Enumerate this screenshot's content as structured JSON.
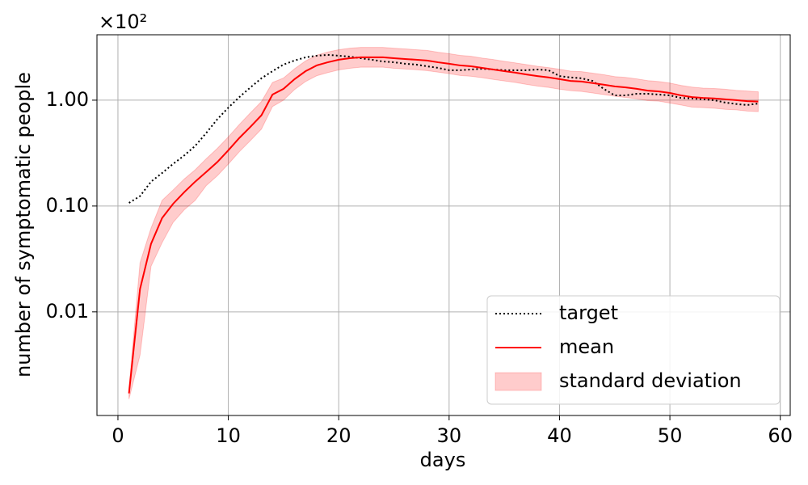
{
  "chart_data": {
    "type": "line",
    "y_multiplier": "×10²",
    "xlabel": "days",
    "ylabel": "number of symptomatic people",
    "x": [
      1,
      2,
      3,
      4,
      5,
      6,
      7,
      8,
      9,
      10,
      11,
      12,
      13,
      14,
      15,
      16,
      17,
      18,
      19,
      20,
      21,
      22,
      23,
      24,
      25,
      26,
      27,
      28,
      29,
      30,
      31,
      32,
      33,
      34,
      35,
      36,
      37,
      38,
      39,
      40,
      41,
      42,
      43,
      44,
      45,
      46,
      47,
      48,
      49,
      50,
      51,
      52,
      53,
      54,
      55,
      56,
      57,
      58
    ],
    "series": [
      {
        "name": "target",
        "color": "#000000",
        "style": "dotted",
        "values": [
          0.107,
          0.124,
          0.17,
          0.205,
          0.25,
          0.3,
          0.37,
          0.49,
          0.66,
          0.85,
          1.07,
          1.32,
          1.61,
          1.88,
          2.17,
          2.37,
          2.54,
          2.63,
          2.68,
          2.63,
          2.58,
          2.49,
          2.41,
          2.32,
          2.28,
          2.21,
          2.17,
          2.09,
          2.02,
          1.92,
          1.92,
          1.95,
          1.98,
          1.95,
          1.92,
          1.92,
          1.92,
          1.95,
          1.92,
          1.69,
          1.64,
          1.61,
          1.52,
          1.28,
          1.11,
          1.11,
          1.15,
          1.15,
          1.13,
          1.11,
          1.05,
          1.04,
          1.02,
          1.0,
          0.95,
          0.92,
          0.9,
          0.93
        ]
      },
      {
        "name": "mean",
        "color": "#ff0000",
        "style": "solid",
        "values": [
          0.0017,
          0.0164,
          0.044,
          0.077,
          0.105,
          0.135,
          0.17,
          0.21,
          0.26,
          0.336,
          0.44,
          0.56,
          0.72,
          1.13,
          1.28,
          1.58,
          1.88,
          2.13,
          2.28,
          2.41,
          2.49,
          2.54,
          2.54,
          2.54,
          2.49,
          2.45,
          2.41,
          2.37,
          2.28,
          2.21,
          2.13,
          2.09,
          2.02,
          1.95,
          1.88,
          1.82,
          1.75,
          1.69,
          1.64,
          1.58,
          1.52,
          1.5,
          1.45,
          1.4,
          1.35,
          1.32,
          1.28,
          1.23,
          1.21,
          1.17,
          1.11,
          1.07,
          1.05,
          1.04,
          1.02,
          1.0,
          0.98,
          0.97
        ]
      },
      {
        "name": "standard deviation",
        "color": "#ff0000",
        "style": "band",
        "upper": [
          0.0019,
          0.029,
          0.062,
          0.113,
          0.142,
          0.18,
          0.22,
          0.28,
          0.35,
          0.45,
          0.59,
          0.76,
          0.97,
          1.47,
          1.62,
          1.98,
          2.35,
          2.66,
          2.85,
          3.0,
          3.1,
          3.15,
          3.15,
          3.15,
          3.1,
          3.05,
          3.0,
          2.95,
          2.84,
          2.75,
          2.65,
          2.6,
          2.5,
          2.42,
          2.33,
          2.25,
          2.17,
          2.09,
          2.03,
          1.96,
          1.88,
          1.86,
          1.8,
          1.74,
          1.67,
          1.64,
          1.59,
          1.53,
          1.5,
          1.45,
          1.38,
          1.33,
          1.3,
          1.29,
          1.27,
          1.24,
          1.22,
          1.2
        ],
        "lower": [
          0.0015,
          0.0039,
          0.027,
          0.045,
          0.07,
          0.092,
          0.113,
          0.156,
          0.193,
          0.249,
          0.326,
          0.415,
          0.533,
          0.87,
          1.0,
          1.26,
          1.5,
          1.7,
          1.82,
          1.93,
          2.0,
          2.05,
          2.05,
          2.05,
          2.0,
          1.97,
          1.94,
          1.9,
          1.84,
          1.78,
          1.71,
          1.68,
          1.63,
          1.57,
          1.52,
          1.47,
          1.41,
          1.36,
          1.32,
          1.27,
          1.23,
          1.21,
          1.17,
          1.13,
          1.09,
          1.06,
          1.03,
          0.99,
          0.98,
          0.94,
          0.9,
          0.86,
          0.85,
          0.84,
          0.82,
          0.81,
          0.79,
          0.78
        ]
      }
    ],
    "xlim": [
      -1.9,
      60.9
    ],
    "xticks": [
      0,
      10,
      20,
      30,
      40,
      50,
      60
    ],
    "ylim": [
      0.00105,
      4.15
    ],
    "yscale": "log",
    "yticks": [
      0.01,
      {
        "value": 0.1,
        "label": "0.10"
      },
      {
        "value": 1,
        "label": "1.00"
      }
    ],
    "grid": true,
    "legend": "lower right"
  }
}
